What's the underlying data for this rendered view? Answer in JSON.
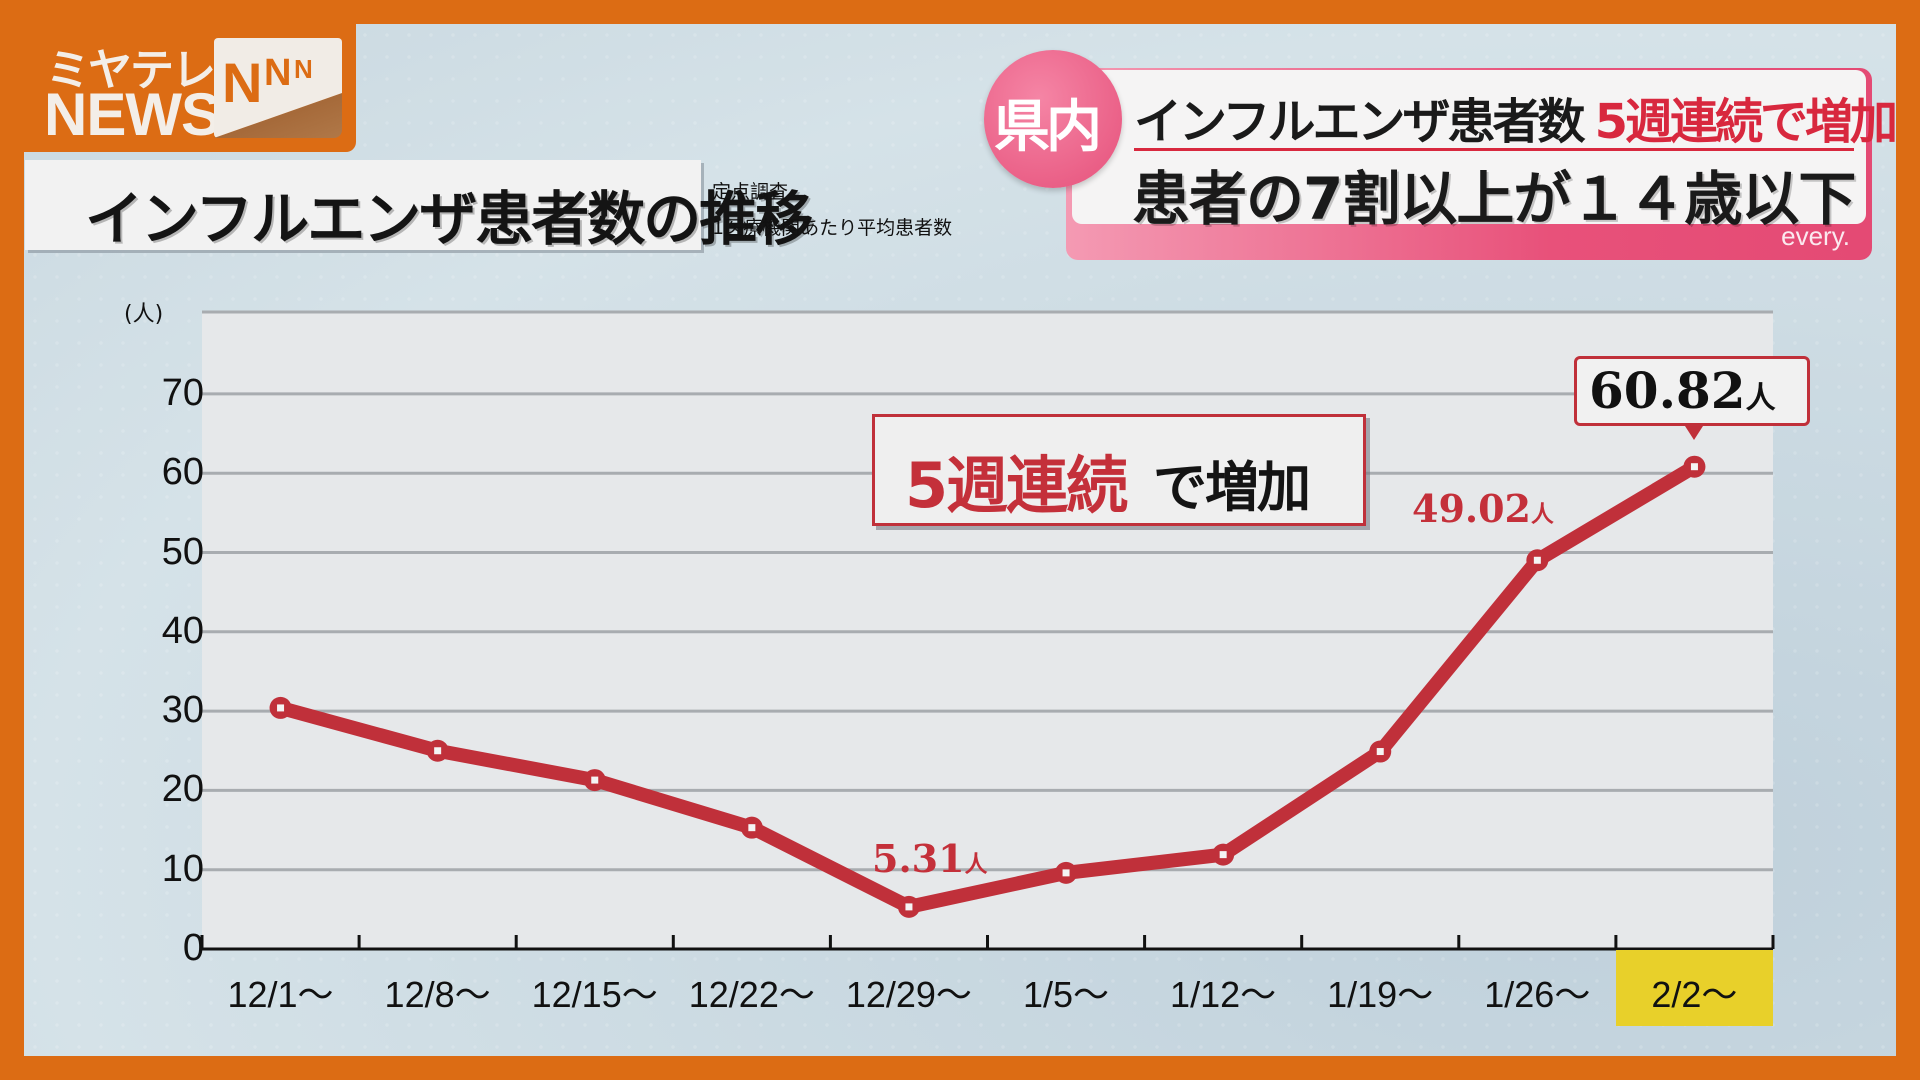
{
  "logo": {
    "station_text": "ミヤテレ",
    "news_text": "NEWS",
    "network_text": [
      "N",
      "N",
      "N"
    ]
  },
  "title_box": {
    "title": "インフルエンザ患者数の推移",
    "subtitle_line1": "定点調査",
    "subtitle_line2": "1医療機関あたり平均患者数"
  },
  "header": {
    "badge": "県内",
    "line1_black": "インフルエンザ患者数",
    "line1_red": "5週連続で増加",
    "line2": "患者の7割以上が１４歳以下",
    "program": "every."
  },
  "annotation": {
    "red_text": "5週連続",
    "black_text": "で増加"
  },
  "labels": {
    "low": {
      "value": "5.31",
      "unit": "人"
    },
    "prev": {
      "value": "49.02",
      "unit": "人"
    },
    "latest": {
      "value": "60.82",
      "unit": "人"
    }
  },
  "colors": {
    "frame_orange": "#DC6C14",
    "header_pink": "#E8517A",
    "line_red": "#C0303A",
    "highlight_yellow": "#E8D02A",
    "plot_bg": "#E6E8EA"
  },
  "chart_data": {
    "type": "line",
    "title": "インフルエンザ患者数の推移",
    "subtitle": "定点調査 1医療機関あたり平均患者数",
    "xlabel": "",
    "ylabel": "(人)",
    "categories": [
      "12/1～",
      "12/8～",
      "12/15～",
      "12/22～",
      "12/29～",
      "1/5～",
      "1/12～",
      "1/19～",
      "1/26～",
      "2/2～"
    ],
    "series": [
      {
        "name": "1医療機関あたり平均患者数",
        "values": [
          30.4,
          25.0,
          21.3,
          15.3,
          5.31,
          9.6,
          11.9,
          24.9,
          49.02,
          60.82
        ]
      }
    ],
    "ylim": [
      0,
      75
    ],
    "yticks": [
      0,
      10,
      20,
      30,
      40,
      50,
      60,
      70
    ],
    "grid": true,
    "legend": "none",
    "highlighted_category": "2/2～",
    "annotations": [
      "5週連続で増加",
      "5.31人",
      "49.02人",
      "60.82人"
    ]
  }
}
